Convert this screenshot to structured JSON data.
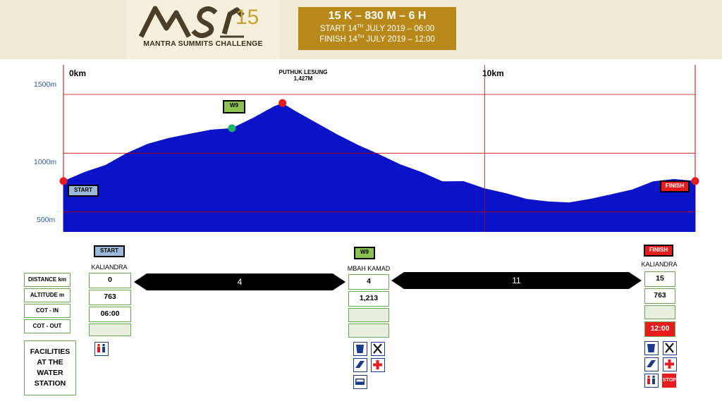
{
  "header": {
    "logo_mark": "MSC",
    "logo_number": "15",
    "logo_text": "MANTRA SUMMITS CHALLENGE",
    "title": "15 K – 830 M – 6 H",
    "start_line": "START 14TH JULY 2019 – 06:00",
    "finish_line": "FINISH 14TH JULY 2019 – 12:00"
  },
  "profile": {
    "y_labels": [
      "1500m",
      "1000m",
      "500m"
    ],
    "km_labels": [
      "0km",
      "10km"
    ],
    "peak_name": "PUTHUK LESUNG",
    "peak_altitude": "1,427M",
    "markers": {
      "start": "START",
      "w9": "W9",
      "finish": "FINISH"
    }
  },
  "chart_data": {
    "type": "area",
    "title": "",
    "xlabel": "",
    "ylabel": "",
    "xlim": [
      0,
      15
    ],
    "ylim": [
      330,
      1800
    ],
    "x": [
      0,
      0.5,
      1,
      1.5,
      2,
      2.5,
      3,
      3.5,
      4,
      4.5,
      5,
      5.2,
      5.5,
      6,
      6.5,
      7,
      7.5,
      8,
      8.5,
      9,
      9.5,
      10,
      10.5,
      11,
      11.5,
      12,
      12.5,
      13,
      13.5,
      14,
      14.5,
      15
    ],
    "series": [
      {
        "values": [
          763,
          840,
          900,
          1000,
          1080,
          1130,
          1165,
          1200,
          1213,
          1300,
          1400,
          1427,
          1360,
          1260,
          1160,
          1070,
          990,
          905,
          840,
          760,
          762,
          700,
          660,
          610,
          590,
          580,
          610,
          650,
          690,
          760,
          780,
          763
        ]
      }
    ],
    "points": [
      {
        "label": "START",
        "x": 0,
        "y": 763
      },
      {
        "label": "W9",
        "x": 4,
        "y": 1213
      },
      {
        "label": "PUTHUK LESUNG",
        "x": 5.2,
        "y": 1427
      },
      {
        "label": "FINISH",
        "x": 15,
        "y": 763
      }
    ]
  },
  "table": {
    "row_labels": [
      "DISTANCE km",
      "ALTITUDE m",
      "COT - IN",
      "COT - OUT"
    ],
    "facilities_label": "FACILITIES AT THE WATER STATION",
    "stations": [
      {
        "tag": "START",
        "name": "KALIANDRA",
        "distance": "0",
        "altitude": "763",
        "cot_in": "06:00",
        "cot_out": ""
      },
      {
        "tag": "W9",
        "name": "MBAH KAMAD",
        "distance": "4",
        "altitude": "1,213",
        "cot_in": "",
        "cot_out": ""
      },
      {
        "tag": "FINISH",
        "name": "KALIANDRA",
        "distance": "15",
        "altitude": "763",
        "cot_in": "",
        "cot_out": "12:00"
      }
    ],
    "segments": [
      "4",
      "11"
    ],
    "icon_stop": "STOP"
  }
}
